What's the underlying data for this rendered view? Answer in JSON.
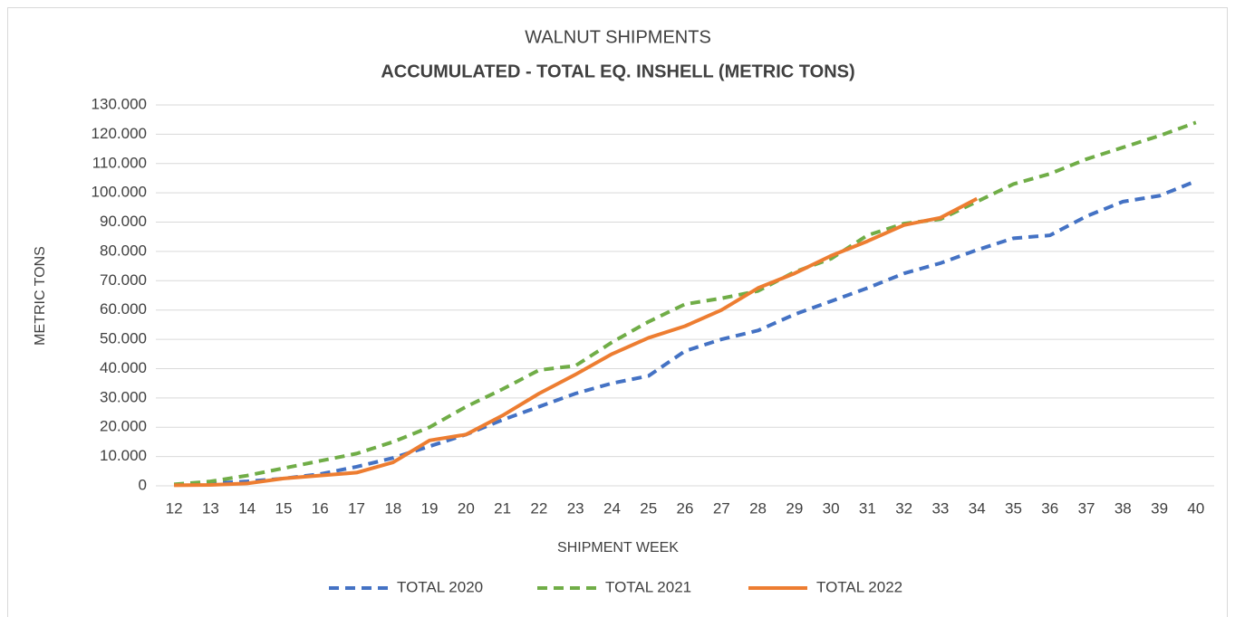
{
  "chart_data": {
    "type": "line",
    "title": "WALNUT SHIPMENTS",
    "subtitle": "ACCUMULATED - TOTAL EQ. INSHELL (METRIC TONS)",
    "x_label": "SHIPMENT WEEK",
    "y_label": "METRIC TONS",
    "categories": [
      "12",
      "13",
      "14",
      "15",
      "16",
      "17",
      "18",
      "19",
      "20",
      "21",
      "22",
      "23",
      "24",
      "25",
      "26",
      "27",
      "28",
      "29",
      "30",
      "31",
      "32",
      "33",
      "34",
      "35",
      "36",
      "37",
      "38",
      "39",
      "40"
    ],
    "series": [
      {
        "name": "TOTAL 2020",
        "color": "#4472c4",
        "dashed": true,
        "values": [
          300,
          800,
          1500,
          2500,
          4000,
          6500,
          9500,
          13500,
          17500,
          22500,
          27000,
          31500,
          35000,
          37500,
          46000,
          50000,
          53000,
          58500,
          63000,
          67500,
          72500,
          76000,
          80500,
          84500,
          85500,
          92000,
          97000,
          99000,
          104000
        ]
      },
      {
        "name": "TOTAL 2021",
        "color": "#70ad47",
        "dashed": true,
        "values": [
          500,
          1500,
          3500,
          6000,
          8500,
          11000,
          15000,
          20000,
          27000,
          33000,
          39500,
          41000,
          49000,
          56000,
          62000,
          64000,
          66500,
          73000,
          77500,
          85500,
          89500,
          91000,
          97000,
          103000,
          106500,
          111500,
          115500,
          119500,
          124000
        ]
      },
      {
        "name": "TOTAL 2022",
        "color": "#ed7d31",
        "dashed": false,
        "values": [
          200,
          300,
          800,
          2500,
          3500,
          4500,
          8000,
          15500,
          17500,
          24000,
          31500,
          38000,
          45000,
          50500,
          54500,
          60000,
          67500,
          72500,
          78500,
          83500,
          89000,
          91500,
          98000,
          null,
          null,
          null,
          null,
          null,
          null
        ]
      }
    ],
    "ylim": [
      0,
      130000
    ],
    "yticks": [
      0,
      {
        "value": 10000,
        "label": "10.000"
      },
      {
        "value": 20000,
        "label": "20.000"
      },
      {
        "value": 30000,
        "label": "30.000"
      },
      {
        "value": 40000,
        "label": "40.000"
      },
      {
        "value": 50000,
        "label": "50.000"
      },
      {
        "value": 60000,
        "label": "60.000"
      },
      {
        "value": 70000,
        "label": "70.000"
      },
      {
        "value": 80000,
        "label": "80.000"
      },
      {
        "value": 90000,
        "label": "90.000"
      },
      {
        "value": 100000,
        "label": "100.000"
      },
      {
        "value": 110000,
        "label": "110.000"
      },
      {
        "value": 120000,
        "label": "120.000"
      },
      {
        "value": 130000,
        "label": "130.000"
      }
    ],
    "grid": true,
    "legend": "bottom"
  }
}
